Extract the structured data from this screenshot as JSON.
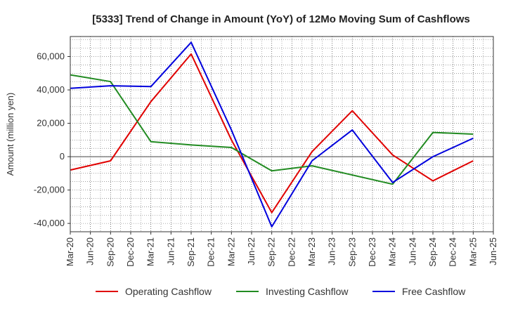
{
  "chart_data": {
    "type": "line",
    "title": "[5333]  Trend of Change in Amount (YoY) of 12Mo Moving Sum of Cashflows",
    "xlabel": "",
    "ylabel": "Amount (million yen)",
    "ylim": [
      -45000,
      72000
    ],
    "yticks": [
      -40000,
      -20000,
      0,
      20000,
      40000,
      60000
    ],
    "ytick_labels": [
      "-40,000",
      "-20,000",
      "0",
      "20,000",
      "40,000",
      "60,000"
    ],
    "categories": [
      "Mar-20",
      "Jun-20",
      "Sep-20",
      "Dec-20",
      "Mar-21",
      "Jun-21",
      "Sep-21",
      "Dec-21",
      "Mar-22",
      "Jun-22",
      "Sep-22",
      "Dec-22",
      "Mar-23",
      "Jun-23",
      "Sep-23",
      "Dec-23",
      "Mar-24",
      "Jun-24",
      "Sep-24",
      "Dec-24",
      "Mar-25",
      "Jun-25"
    ],
    "grid": true,
    "legend_position": "bottom",
    "series": [
      {
        "name": "Operating Cashflow",
        "color": "#e00000",
        "values": [
          -8000,
          null,
          -2500,
          null,
          33000,
          null,
          61500,
          null,
          10000,
          null,
          -33500,
          null,
          3000,
          null,
          27500,
          null,
          1000,
          null,
          -14500,
          null,
          -2500,
          null
        ]
      },
      {
        "name": "Investing Cashflow",
        "color": "#228b22",
        "values": [
          49000,
          null,
          45000,
          null,
          9000,
          null,
          7000,
          null,
          5500,
          null,
          -8500,
          null,
          -5500,
          null,
          -11000,
          null,
          -16500,
          null,
          14500,
          null,
          13500,
          null
        ]
      },
      {
        "name": "Free Cashflow",
        "color": "#0000dd",
        "values": [
          41000,
          null,
          42500,
          null,
          42000,
          null,
          68500,
          null,
          16000,
          null,
          -42000,
          null,
          -2500,
          null,
          16000,
          null,
          -15500,
          null,
          0,
          null,
          11000,
          null
        ]
      }
    ]
  }
}
